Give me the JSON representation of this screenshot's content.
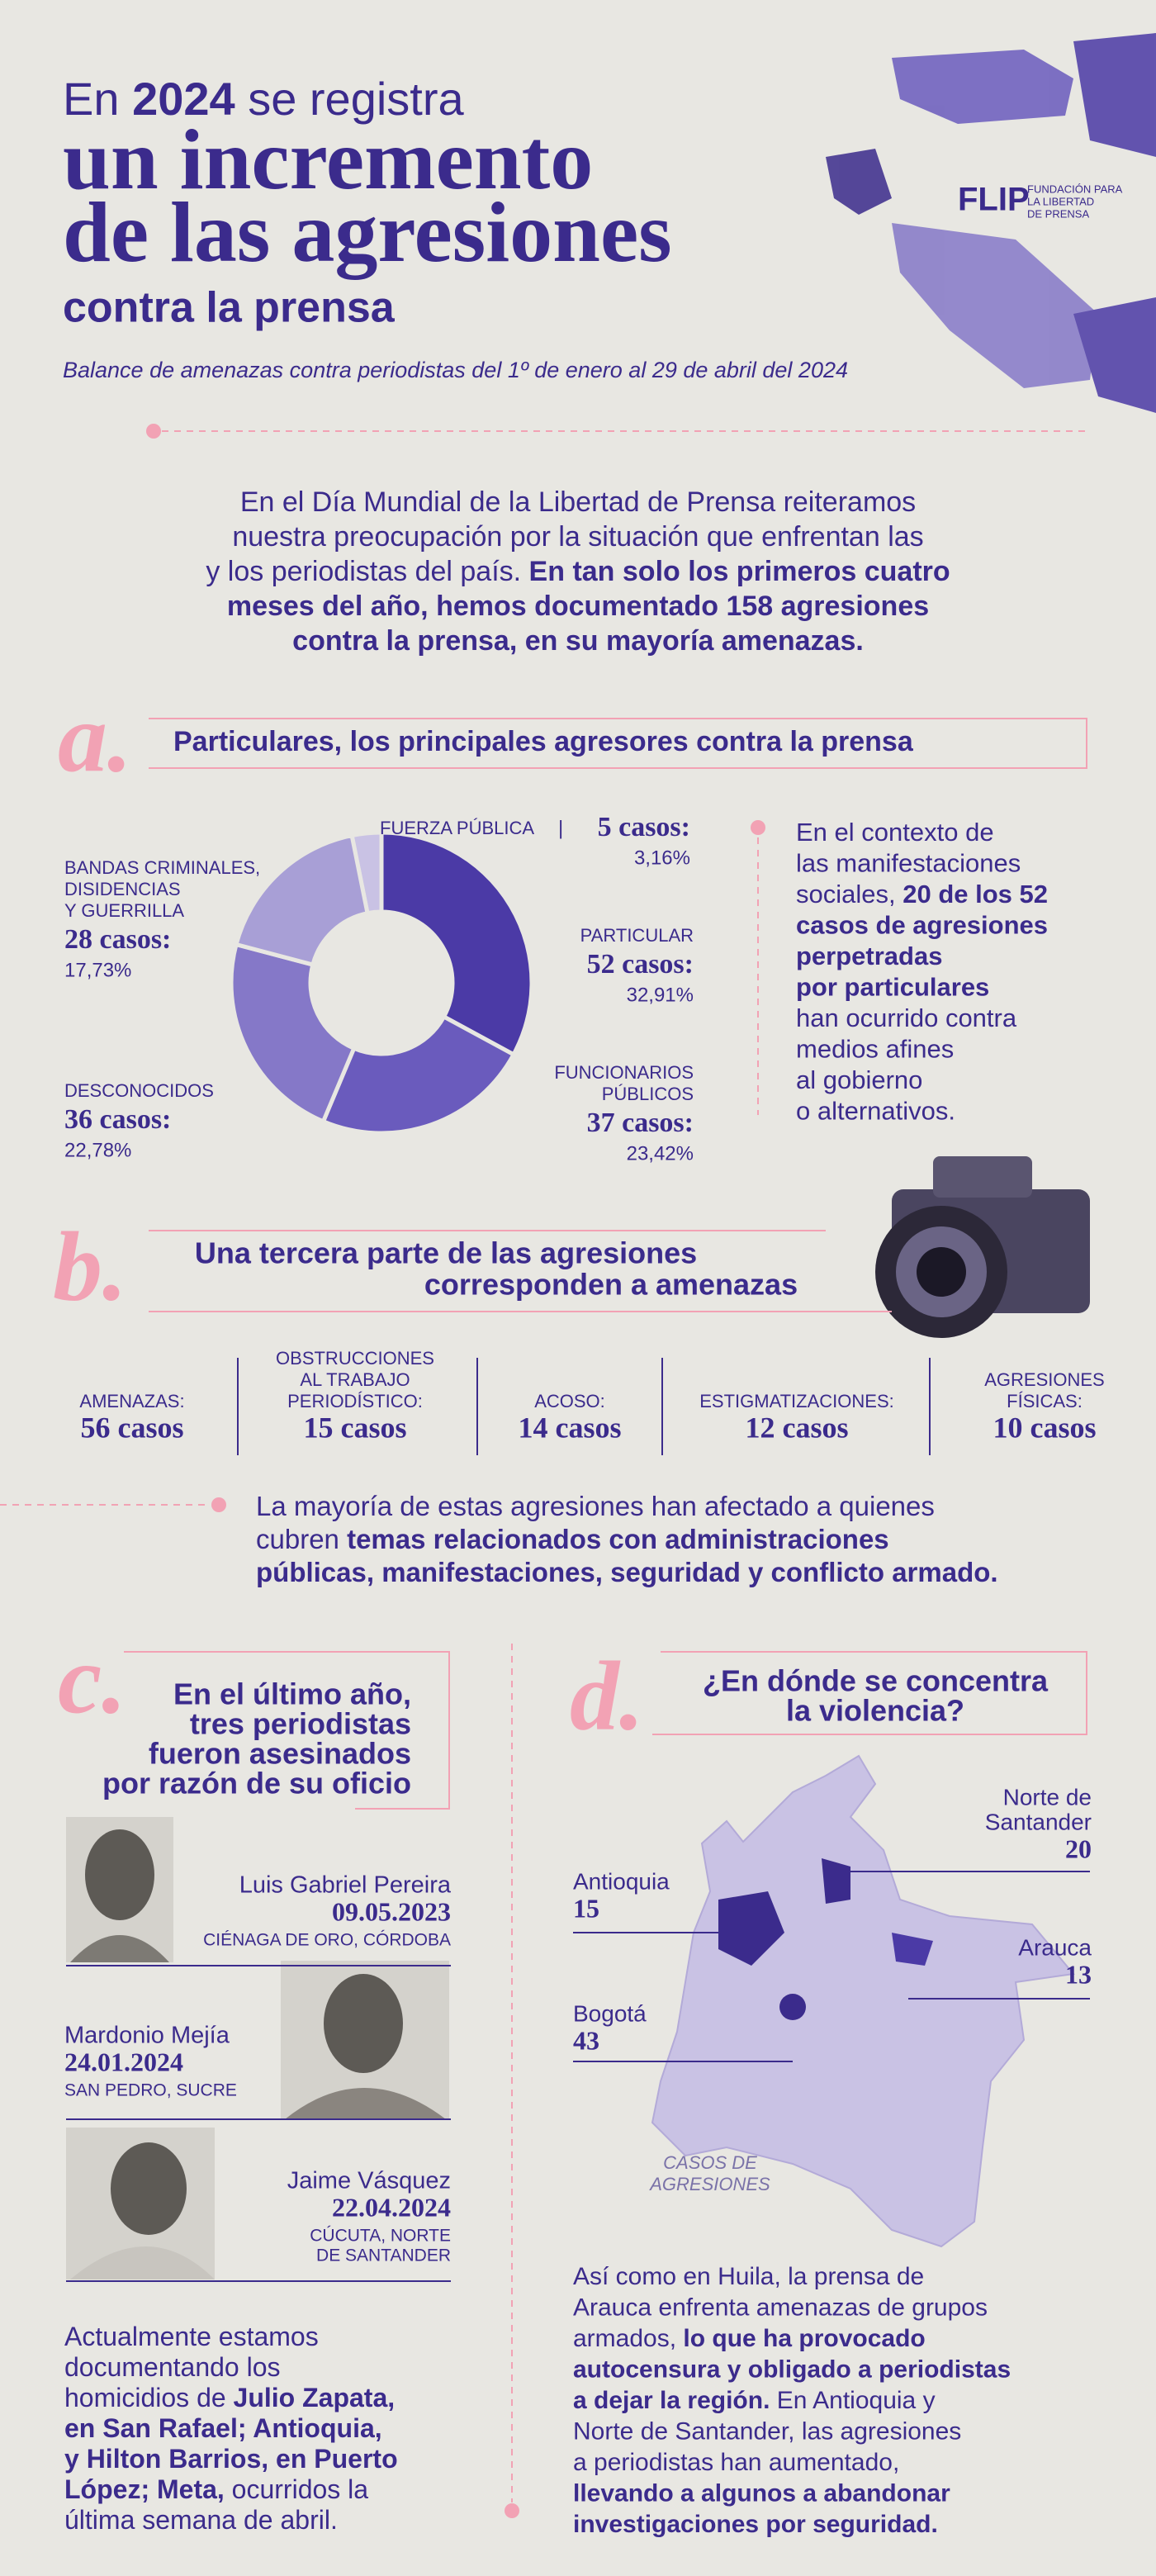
{
  "header": {
    "title": [
      {
        "text": "En "
      },
      {
        "text": "2024",
        "bold": true
      },
      {
        "text": " se registra"
      }
    ],
    "headline": [
      "un incremento",
      "de las agresiones"
    ],
    "title_end": "contra la prensa",
    "subtitle": "Balance de amenazas contra periodistas del 1º de enero al 29 de abril del 2024",
    "logo": {
      "mark": "FLIP",
      "text": [
        "FUNDACIÓN PARA",
        "LA LIBERTAD",
        "DE PRENSA"
      ]
    }
  },
  "intro": [
    [
      {
        "text": "En el Día Mundial de la Libertad de Prensa reiteramos"
      }
    ],
    [
      {
        "text": "nuestra preocupación por la situación que enfrentan las"
      }
    ],
    [
      {
        "text": "y los periodistas del país. "
      },
      {
        "text": "En tan solo los primeros cuatro",
        "bold": true
      }
    ],
    [
      {
        "text": "meses del año, hemos documentado 158 agresiones",
        "bold": true
      }
    ],
    [
      {
        "text": "contra la prensa, en su mayoría amenazas.",
        "bold": true
      }
    ]
  ],
  "section_a": {
    "letter": "a.",
    "title": "Particulares, los principales agresores contra la prensa",
    "donut": {
      "slices": [
        {
          "name": [
            "FUERZA PÚBLICA"
          ],
          "cases": {
            "value": 5,
            "label": "5 casos:"
          },
          "percent": {
            "value": 3.16,
            "label": "3,16%"
          }
        },
        {
          "name": [
            "PARTICULAR"
          ],
          "cases": {
            "value": 52,
            "label": "52 casos:"
          },
          "percent": {
            "value": 32.91,
            "label": "32,91%"
          }
        },
        {
          "name": [
            "FUNCIONARIOS",
            "PÚBLICOS"
          ],
          "cases": {
            "value": 37,
            "label": "37 casos:"
          },
          "percent": {
            "value": 23.42,
            "label": "23,42%"
          }
        },
        {
          "name": [
            "DESCONOCIDOS"
          ],
          "cases": {
            "value": 36,
            "label": "36 casos:"
          },
          "percent": {
            "value": 22.78,
            "label": "22,78%"
          }
        },
        {
          "name": [
            "BANDAS CRIMINALES,",
            "DISIDENCIAS",
            "Y GUERRILLA"
          ],
          "cases": {
            "value": 28,
            "label": "28 casos:"
          },
          "percent": {
            "value": 17.73,
            "label": "17,73%"
          }
        }
      ]
    },
    "note": [
      [
        {
          "text": "En el contexto de"
        }
      ],
      [
        {
          "text": "las manifestaciones"
        }
      ],
      [
        {
          "text": "sociales, "
        },
        {
          "text": "20 de los 52",
          "bold": true
        }
      ],
      [
        {
          "text": "casos de agresiones",
          "bold": true
        }
      ],
      [
        {
          "text": "perpetradas",
          "bold": true
        }
      ],
      [
        {
          "text": "por particulares",
          "bold": true
        }
      ],
      [
        {
          "text": "han ocurrido contra"
        }
      ],
      [
        {
          "text": "medios afines"
        }
      ],
      [
        {
          "text": "al gobierno"
        }
      ],
      [
        {
          "text": "o alternativos."
        }
      ]
    ]
  },
  "section_b": {
    "letter": "b.",
    "title": [
      "Una tercera parte de las agresiones",
      "corresponden a amenazas"
    ],
    "stats": [
      {
        "label": [
          "AMENAZAS:"
        ],
        "value": "56 casos"
      },
      {
        "label": [
          "OBSTRUCCIONES",
          "AL TRABAJO",
          "PERIODÍSTICO:"
        ],
        "value": "15 casos"
      },
      {
        "label": [
          "ACOSO:"
        ],
        "value": "14 casos"
      },
      {
        "label": [
          "ESTIGMATIZACIONES:"
        ],
        "value": "12 casos"
      },
      {
        "label": [
          "AGRESIONES",
          "FÍSICAS:"
        ],
        "value": "10 casos"
      }
    ],
    "note": [
      [
        {
          "text": "La mayoría de estas agresiones han afectado a quienes"
        }
      ],
      [
        {
          "text": "cubren "
        },
        {
          "text": "temas relacionados con administraciones",
          "bold": true
        }
      ],
      [
        {
          "text": "públicas, manifestaciones, seguridad y conflicto armado.",
          "bold": true
        }
      ]
    ]
  },
  "section_c": {
    "letter": "c.",
    "title": [
      "En el último año,",
      "tres periodistas",
      "fueron asesinados",
      "por razón de su oficio"
    ],
    "people": [
      {
        "name": "Luis Gabriel Pereira",
        "date": "09.05.2023",
        "place": [
          "CIÉNAGA DE ORO, CÓRDOBA"
        ]
      },
      {
        "name": "Mardonio Mejía",
        "date": "24.01.2024",
        "place": [
          "SAN PEDRO, SUCRE"
        ]
      },
      {
        "name": "Jaime Vásquez",
        "date": "22.04.2024",
        "place": [
          "CÚCUTA, NORTE",
          "DE SANTANDER"
        ]
      }
    ],
    "note": [
      [
        {
          "text": "Actualmente estamos"
        }
      ],
      [
        {
          "text": "documentando los"
        }
      ],
      [
        {
          "text": "homicidios de "
        },
        {
          "text": "Julio Zapata,",
          "bold": true
        }
      ],
      [
        {
          "text": "en San Rafael; Antioquia,",
          "bold": true
        }
      ],
      [
        {
          "text": "y Hilton Barrios, en Puerto",
          "bold": true
        }
      ],
      [
        {
          "text": "López; Meta,",
          "bold": true
        },
        {
          "text": " ocurridos la"
        }
      ],
      [
        {
          "text": "última semana de abril."
        }
      ]
    ]
  },
  "section_d": {
    "letter": "d.",
    "title": [
      "¿En dónde se concentra",
      "la violencia?"
    ],
    "regions": [
      {
        "name": [
          "Norte de",
          "Santander"
        ],
        "value": 20
      },
      {
        "name": [
          "Antioquia"
        ],
        "value": 15
      },
      {
        "name": [
          "Arauca"
        ],
        "value": 13
      },
      {
        "name": [
          "Bogotá"
        ],
        "value": 43
      }
    ],
    "map_caption": [
      "CASOS DE",
      "AGRESIONES"
    ],
    "note": [
      [
        {
          "text": "Así como en Huila, la prensa de"
        }
      ],
      [
        {
          "text": "Arauca enfrenta amenazas de grupos"
        }
      ],
      [
        {
          "text": "armados, "
        },
        {
          "text": "lo que ha provocado",
          "bold": true
        }
      ],
      [
        {
          "text": "autocensura y obligado a periodistas",
          "bold": true
        }
      ],
      [
        {
          "text": "a dejar la región.",
          "bold": true
        },
        {
          "text": " En Antioquia y"
        }
      ],
      [
        {
          "text": "Norte de Santander, las agresiones"
        }
      ],
      [
        {
          "text": "a periodistas han aumentado,"
        }
      ],
      [
        {
          "text": "llevando a algunos a abandonar",
          "bold": true
        }
      ],
      [
        {
          "text": "investigaciones por seguridad.",
          "bold": true
        }
      ]
    ]
  }
}
